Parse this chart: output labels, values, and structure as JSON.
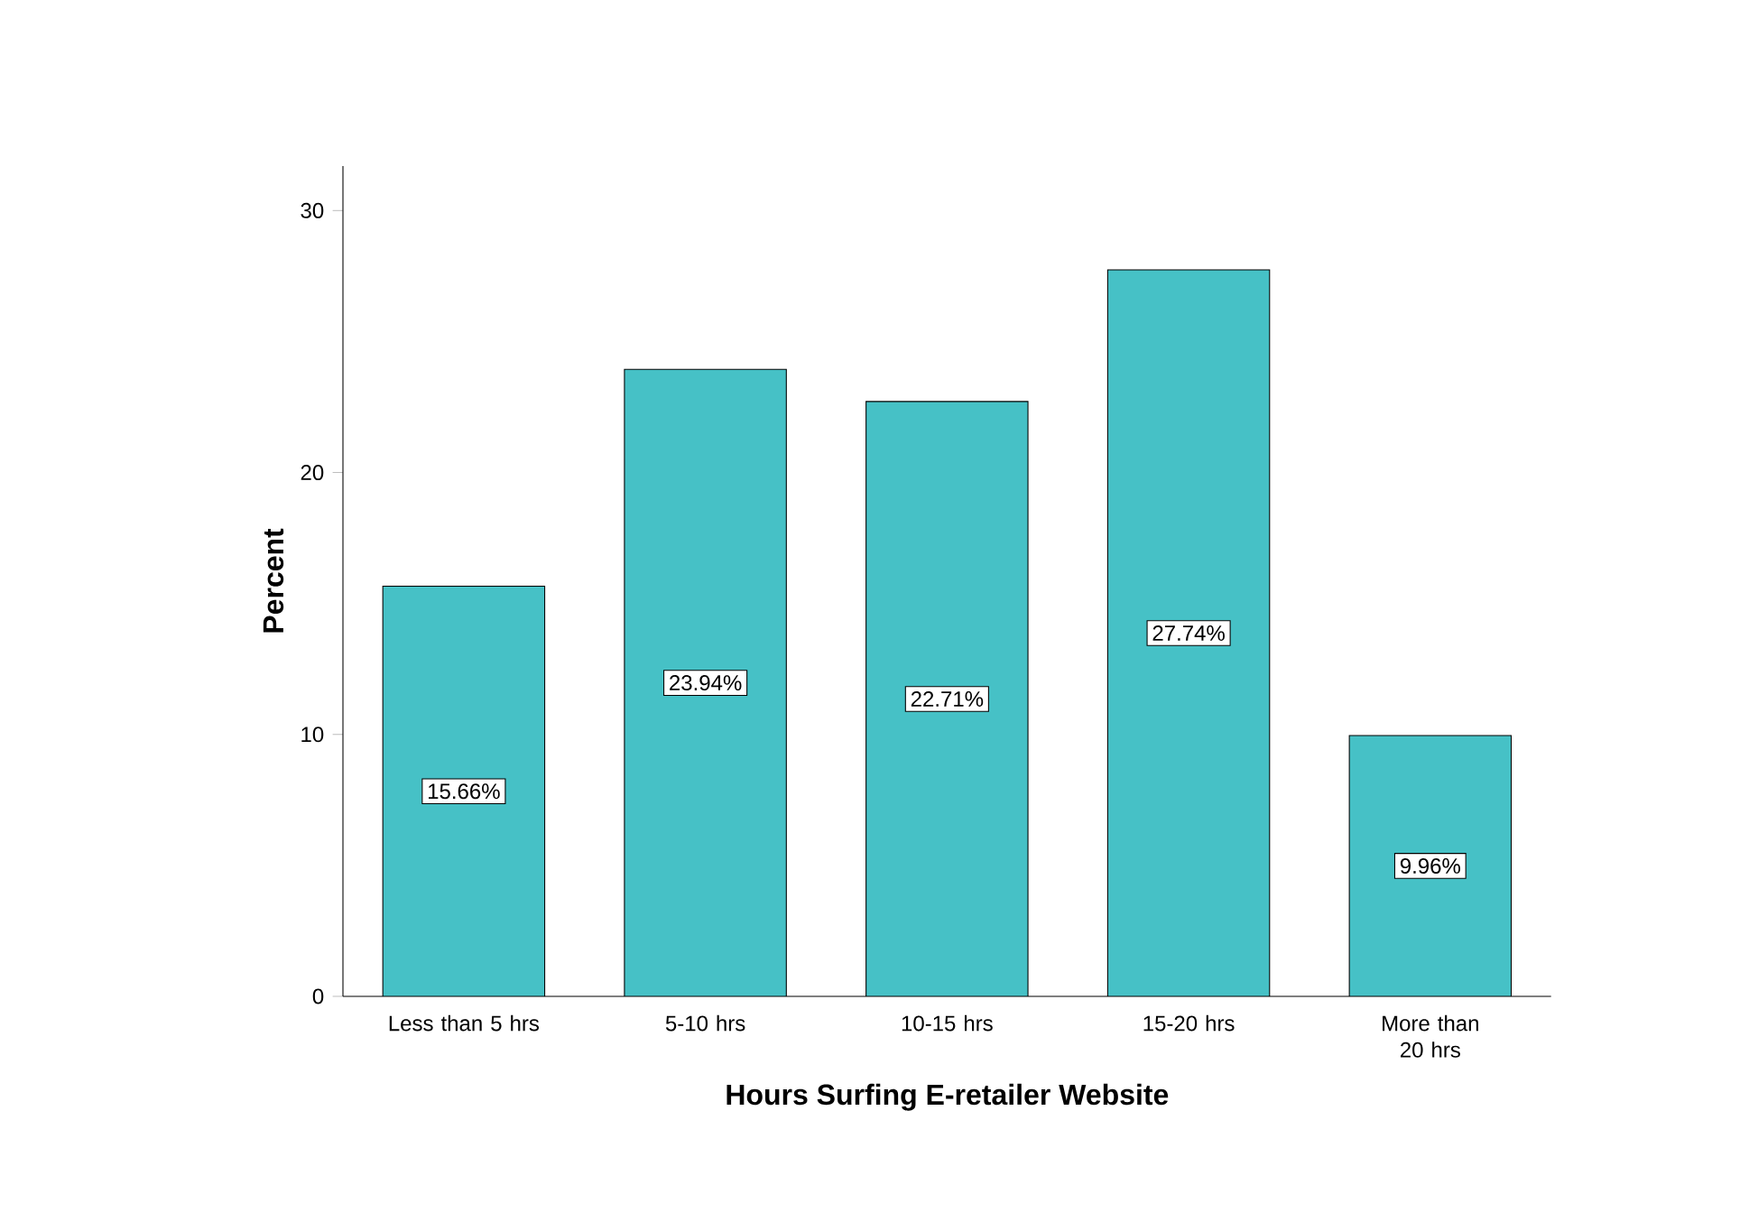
{
  "chart_data": {
    "type": "bar",
    "xlabel": "Hours Surfing E-retailer Website",
    "ylabel": "Percent",
    "categories": [
      "Less than 5 hrs",
      "5-10 hrs",
      "10-15 hrs",
      "15-20 hrs",
      "More than 20 hrs"
    ],
    "values": [
      15.66,
      23.94,
      22.71,
      27.74,
      9.96
    ],
    "value_labels": [
      "15.66%",
      "23.94%",
      "22.71%",
      "27.74%",
      "9.96%"
    ],
    "color": "#46c1c6",
    "ylim": [
      0,
      31.7
    ],
    "yticks": [
      0,
      10,
      20,
      30
    ],
    "grid": false
  }
}
